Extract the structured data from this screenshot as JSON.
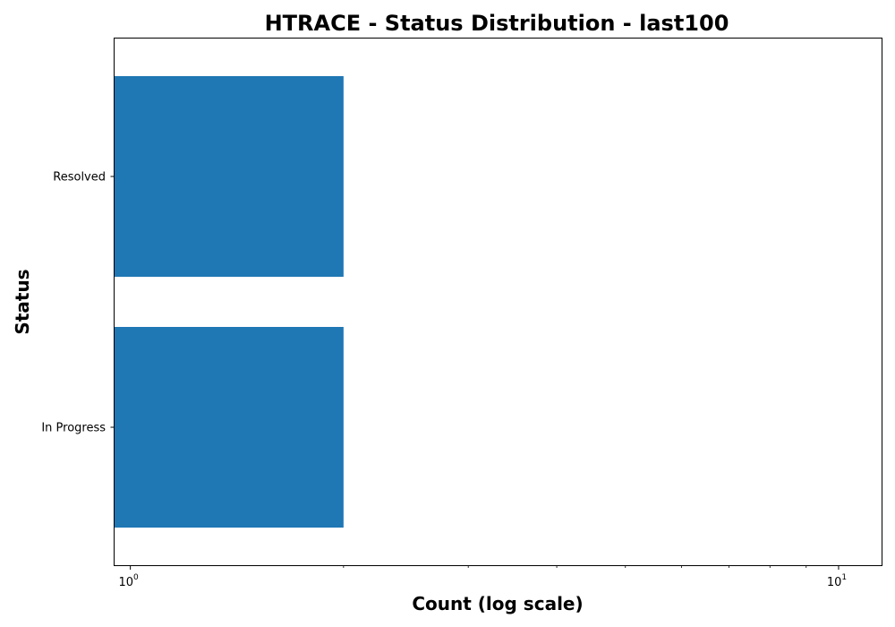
{
  "chart_data": {
    "type": "bar",
    "orientation": "horizontal",
    "title": "HTRACE - Status Distribution - last100",
    "xlabel": "Count (log scale)",
    "ylabel": "Status",
    "x_scale": "log",
    "xlim": [
      0.95,
      11.5
    ],
    "categories": [
      "Resolved",
      "In Progress"
    ],
    "values": [
      2,
      2
    ],
    "bar_color": "#1f77b4",
    "x_major_ticks": [
      {
        "value": 1,
        "base": "10",
        "exponent": "0"
      },
      {
        "value": 10,
        "base": "10",
        "exponent": "1"
      }
    ],
    "x_minor_ticks": [
      2,
      3,
      4,
      5,
      6,
      7,
      8,
      9
    ],
    "grid": false,
    "legend": "none"
  }
}
